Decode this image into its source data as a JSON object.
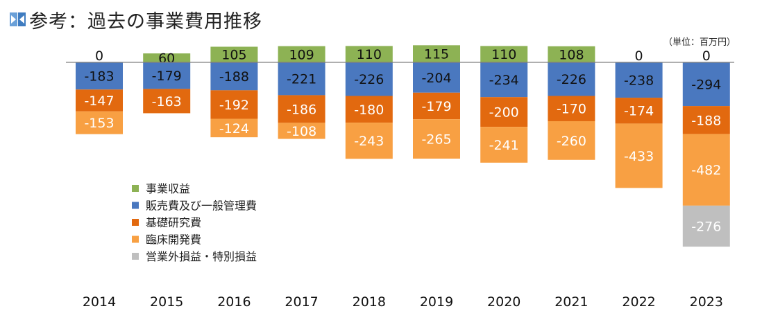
{
  "title": "参考：過去の事業費用推移",
  "unit_note": "（単位：百万円）",
  "icon": "company-logo-icon",
  "chart_data": {
    "type": "bar",
    "stacked": true,
    "categories": [
      "2014",
      "2015",
      "2016",
      "2017",
      "2018",
      "2019",
      "2020",
      "2021",
      "2022",
      "2023"
    ],
    "series": [
      {
        "name": "事業収益",
        "color": "#8db254",
        "label_color": "#111111",
        "values": [
          0,
          60,
          105,
          109,
          110,
          115,
          110,
          108,
          0,
          0
        ]
      },
      {
        "name": "販売費及び一般管理費",
        "color": "#4a78bf",
        "label_color": "#111111",
        "values": [
          -183,
          -179,
          -188,
          -221,
          -226,
          -204,
          -234,
          -226,
          -238,
          -294
        ]
      },
      {
        "name": "基礎研究費",
        "color": "#e2690f",
        "label_color": "#ffffff",
        "values": [
          -147,
          -163,
          -192,
          -186,
          -180,
          -179,
          -200,
          -170,
          -174,
          -188
        ]
      },
      {
        "name": "臨床開発費",
        "color": "#f8a043",
        "label_color": "#ffffff",
        "values": [
          -153,
          -1,
          -124,
          -108,
          -243,
          -265,
          -241,
          -260,
          -433,
          -482
        ]
      },
      {
        "name": "営業外損益・特別損益",
        "color": "#bfbfbf",
        "label_color": "#ffffff",
        "values": [
          0,
          0,
          0,
          0,
          0,
          0,
          0,
          0,
          0,
          -276
        ]
      }
    ],
    "legend_position": "lower-left",
    "grid": false
  }
}
